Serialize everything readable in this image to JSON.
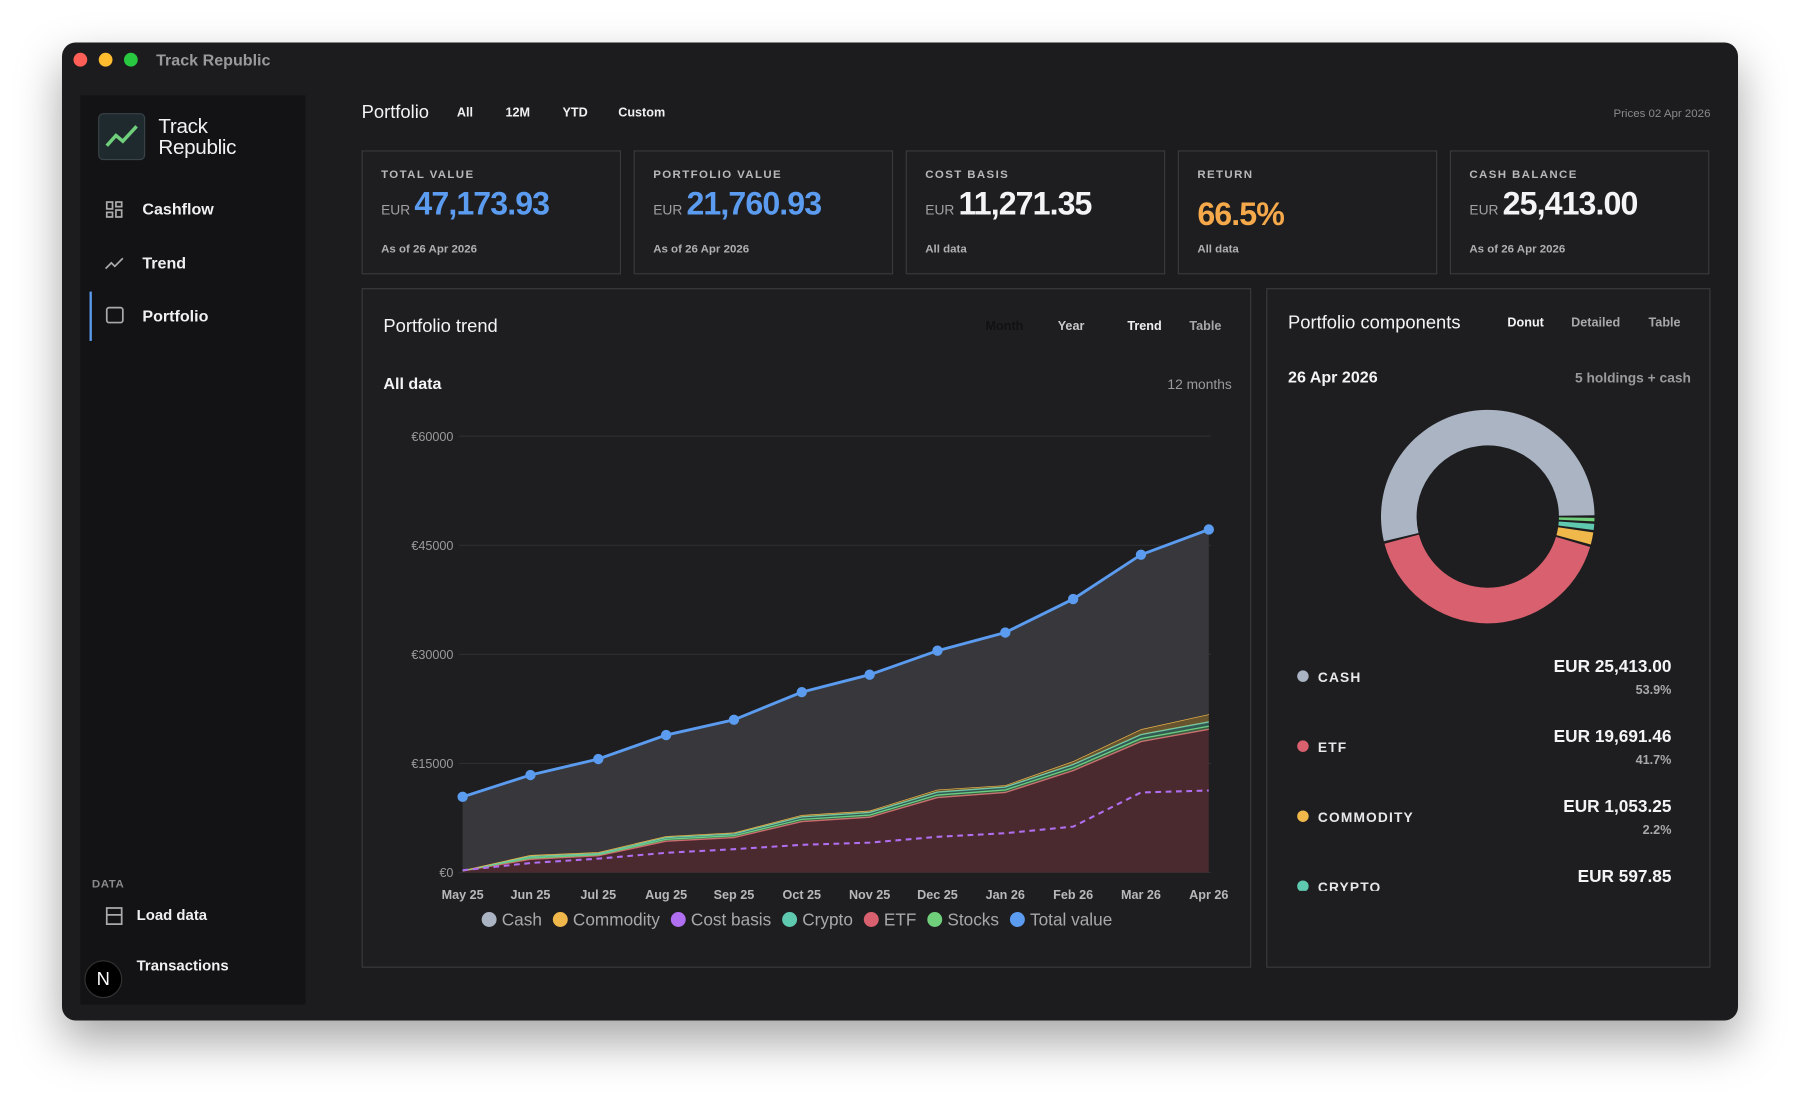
{
  "window": {
    "title": "Track Republic"
  },
  "sidebar": {
    "brand": [
      "Track",
      "Republic"
    ],
    "nav": [
      "Cashflow",
      "Trend",
      "Portfolio"
    ],
    "section": "DATA",
    "data_nav": [
      "Load data",
      "Transactions"
    ],
    "badge": "N"
  },
  "header": {
    "title": "Portfolio",
    "ranges": [
      "All",
      "12M",
      "YTD",
      "Custom"
    ],
    "prices": "Prices 02 Apr 2026"
  },
  "cards": [
    {
      "label": "TOTAL VALUE",
      "currency": "EUR",
      "value": "47,173.93",
      "note": "As of 26 Apr 2026"
    },
    {
      "label": "PORTFOLIO VALUE",
      "currency": "EUR",
      "value": "21,760.93",
      "note": "As of 26 Apr 2026"
    },
    {
      "label": "COST BASIS",
      "currency": "EUR",
      "value": "11,271.35",
      "note": "All data"
    },
    {
      "label": "RETURN",
      "value": "66.5%",
      "note": "All data"
    },
    {
      "label": "CASH BALANCE",
      "currency": "EUR",
      "value": "25,413.00",
      "note": "As of 26 Apr 2026"
    }
  ],
  "trend_panel": {
    "title": "Portfolio trend",
    "periods": [
      "Month",
      "Year"
    ],
    "views": [
      "Trend",
      "Table"
    ],
    "subtitle": "All data",
    "span": "12 months"
  },
  "components_panel": {
    "title": "Portfolio components",
    "views": [
      "Donut",
      "Detailed",
      "Table"
    ],
    "date": "26 Apr 2026",
    "count": "5 holdings + cash"
  },
  "chart_data": [
    {
      "type": "line",
      "categories": [
        "May 25",
        "Jun 25",
        "Jul 25",
        "Aug 25",
        "Sep 25",
        "Oct 25",
        "Nov 25",
        "Dec 25",
        "Jan 26",
        "Feb 26",
        "Mar 26",
        "Apr 26"
      ],
      "ylim": [
        0,
        60000
      ],
      "yticks": [
        {
          "value": 0,
          "label": "€0"
        },
        {
          "value": 15000,
          "label": "€15000"
        },
        {
          "value": 30000,
          "label": "€30000"
        },
        {
          "value": 45000,
          "label": "€45000"
        },
        {
          "value": 60000,
          "label": "€60000"
        }
      ],
      "grid": true,
      "series": [
        {
          "name": "Cash",
          "color": "#aab4c3",
          "stack": 4,
          "values": [
            10100,
            11000,
            12800,
            13900,
            15500,
            16900,
            18700,
            19100,
            21000,
            22300,
            24000,
            25413.0
          ]
        },
        {
          "name": "Commodity",
          "color": "#f0b84a",
          "stack": 3,
          "values": [
            40,
            200,
            200,
            200,
            200,
            250,
            250,
            350,
            250,
            450,
            740,
            1053.25
          ]
        },
        {
          "name": "Cost basis",
          "color": "#b06ef0",
          "dashed": true,
          "values": [
            300,
            1300,
            1900,
            2700,
            3200,
            3800,
            4100,
            4900,
            5400,
            6300,
            11000,
            11271.35
          ]
        },
        {
          "name": "Crypto",
          "color": "#5fc9b0",
          "stack": 2,
          "values": [
            30,
            200,
            150,
            250,
            250,
            350,
            350,
            400,
            400,
            450,
            550,
            597.85
          ]
        },
        {
          "name": "ETF",
          "color": "#d9606e",
          "stack": 0,
          "values": [
            200,
            1800,
            2300,
            4300,
            4800,
            7000,
            7600,
            10300,
            11000,
            14000,
            18000,
            19691.46
          ]
        },
        {
          "name": "Stocks",
          "color": "#6fcf7a",
          "stack": 1,
          "values": [
            30,
            200,
            150,
            250,
            250,
            300,
            300,
            350,
            350,
            400,
            410,
            418.37
          ]
        },
        {
          "name": "Total value",
          "color": "#5b9cf0",
          "markers": true,
          "values": [
            10400,
            13400,
            15600,
            18900,
            21000,
            24800,
            27200,
            30500,
            33000,
            37600,
            43700,
            47173.93
          ]
        }
      ]
    },
    {
      "type": "pie",
      "donut": true,
      "categories": [
        "CASH",
        "ETF",
        "COMMODITY",
        "CRYPTO",
        null
      ],
      "values": [
        53.9,
        41.7,
        2.2,
        1.3,
        0.9
      ],
      "value_labels": [
        "53.9%",
        "41.7%",
        "2.2%",
        null,
        null
      ],
      "amounts": [
        "EUR 25,413.00",
        "EUR 19,691.46",
        "EUR 1,053.25",
        "EUR 597.85",
        null
      ],
      "colors": [
        "#aab4c3",
        "#d9606e",
        "#f0b84a",
        "#5fc9b0",
        "#6fcf7a"
      ]
    }
  ]
}
